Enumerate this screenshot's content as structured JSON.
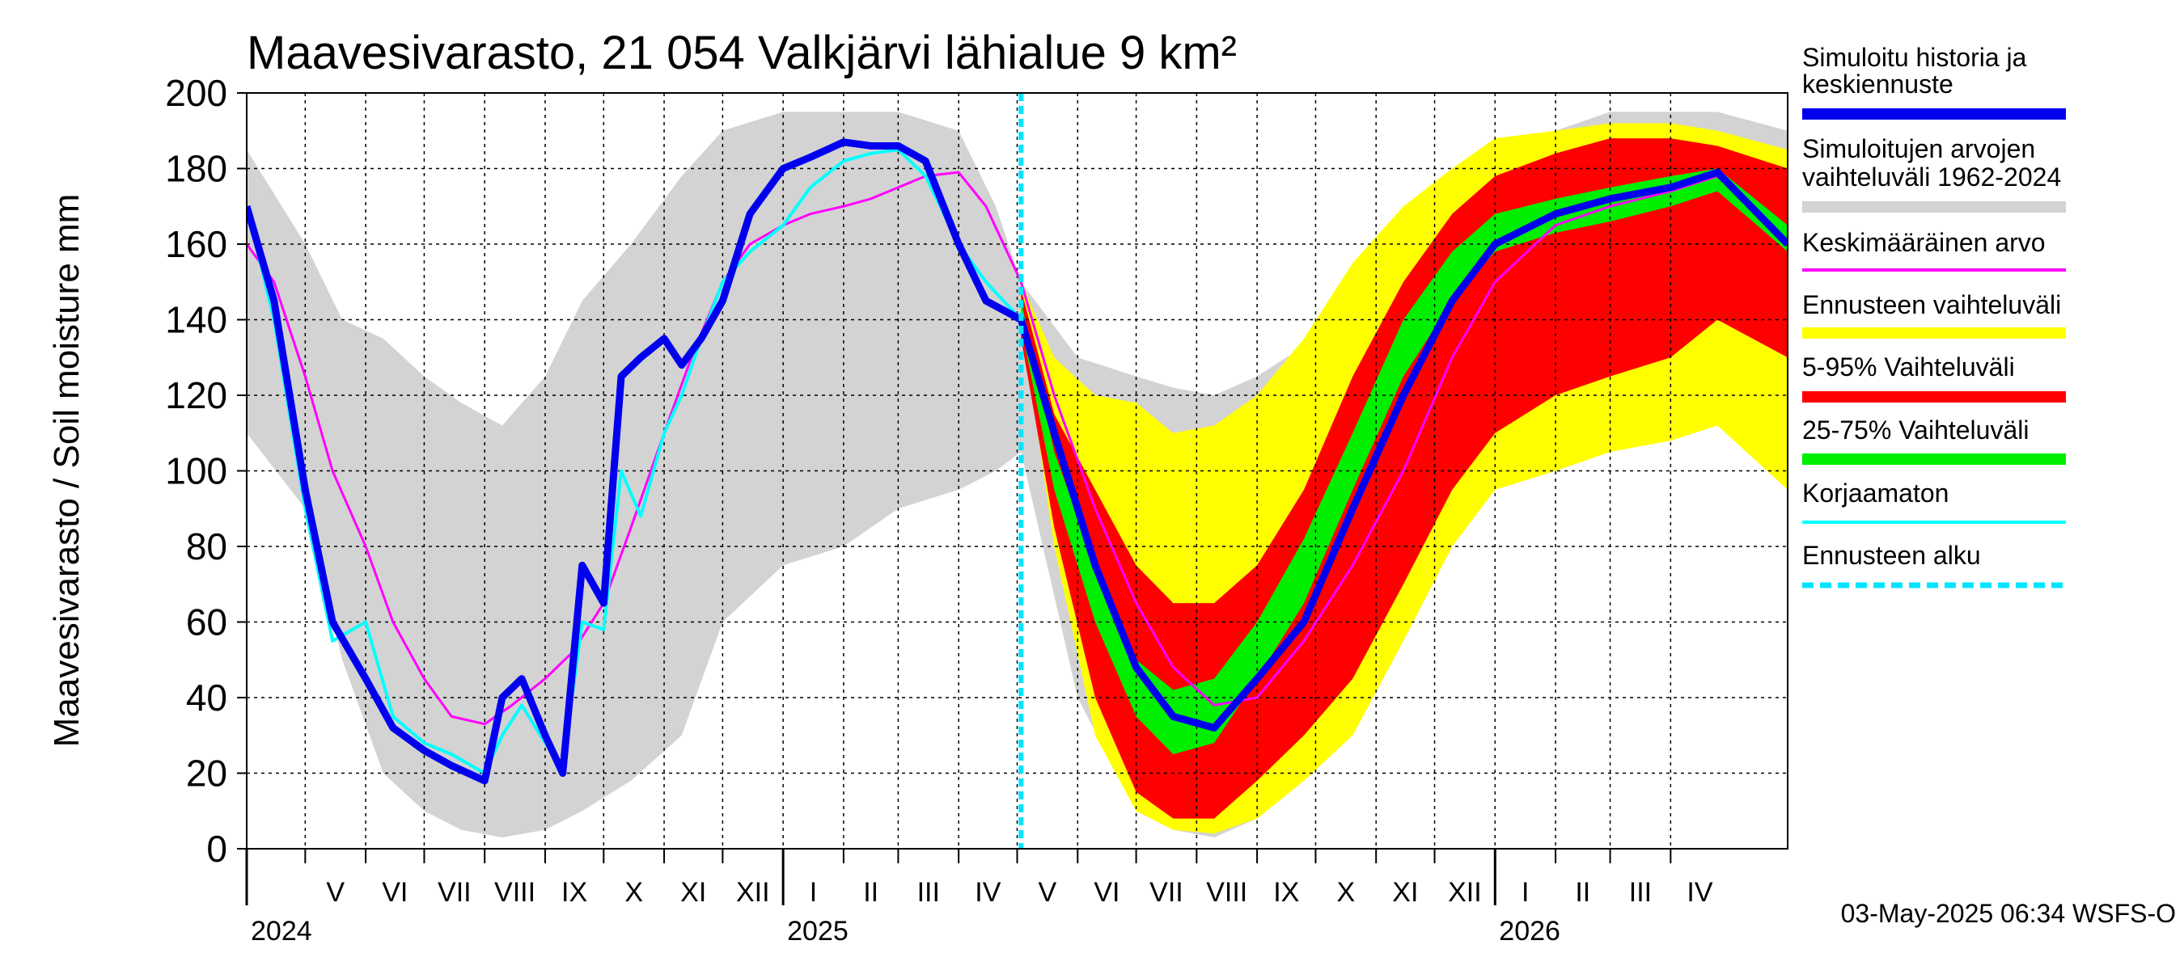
{
  "chart_data": {
    "type": "area",
    "title": "Maavesivarasto, 21 054 Valkjärvi lähialue 9 km²",
    "ylabel": "Maavesivarasto / Soil moisture   mm",
    "ylim": [
      0,
      200
    ],
    "yticks": [
      0,
      20,
      40,
      60,
      80,
      100,
      120,
      140,
      160,
      180,
      200
    ],
    "grid": true,
    "x_start": "2024-04-01",
    "x_end": "2026-05-31",
    "forecast_start": "2025-05-03",
    "months": [
      {
        "label": "V",
        "start": "2024-05-01",
        "end": "2024-06-01"
      },
      {
        "label": "VI",
        "start": "2024-06-01",
        "end": "2024-07-01"
      },
      {
        "label": "VII",
        "start": "2024-07-01",
        "end": "2024-08-01"
      },
      {
        "label": "VIII",
        "start": "2024-08-01",
        "end": "2024-09-01"
      },
      {
        "label": "IX",
        "start": "2024-09-01",
        "end": "2024-10-01"
      },
      {
        "label": "X",
        "start": "2024-10-01",
        "end": "2024-11-01"
      },
      {
        "label": "XI",
        "start": "2024-11-01",
        "end": "2024-12-01"
      },
      {
        "label": "XII",
        "start": "2024-12-01",
        "end": "2025-01-01"
      },
      {
        "label": "I",
        "start": "2025-01-01",
        "end": "2025-02-01"
      },
      {
        "label": "II",
        "start": "2025-02-01",
        "end": "2025-03-01"
      },
      {
        "label": "III",
        "start": "2025-03-01",
        "end": "2025-04-01"
      },
      {
        "label": "IV",
        "start": "2025-04-01",
        "end": "2025-05-01"
      },
      {
        "label": "V",
        "start": "2025-05-01",
        "end": "2025-06-01"
      },
      {
        "label": "VI",
        "start": "2025-06-01",
        "end": "2025-07-01"
      },
      {
        "label": "VII",
        "start": "2025-07-01",
        "end": "2025-08-01"
      },
      {
        "label": "VIII",
        "start": "2025-08-01",
        "end": "2025-09-01"
      },
      {
        "label": "IX",
        "start": "2025-09-01",
        "end": "2025-10-01"
      },
      {
        "label": "X",
        "start": "2025-10-01",
        "end": "2025-11-01"
      },
      {
        "label": "XI",
        "start": "2025-11-01",
        "end": "2025-12-01"
      },
      {
        "label": "XII",
        "start": "2025-12-01",
        "end": "2026-01-01"
      },
      {
        "label": "I",
        "start": "2026-01-01",
        "end": "2026-02-01"
      },
      {
        "label": "II",
        "start": "2026-02-01",
        "end": "2026-03-01"
      },
      {
        "label": "III",
        "start": "2026-03-01",
        "end": "2026-04-01"
      },
      {
        "label": "IV",
        "start": "2026-04-01",
        "end": "2026-05-01"
      }
    ],
    "years": [
      {
        "label": "2024",
        "date": "2024-04-01"
      },
      {
        "label": "2025",
        "date": "2025-01-01"
      },
      {
        "label": "2026",
        "date": "2026-01-01"
      }
    ],
    "legend": [
      {
        "label": "Simuloitu historia ja keskiennuste",
        "color": "#0000ee",
        "style": "thick"
      },
      {
        "label": "Simuloitujen arvojen vaihteluväli 1962-2024",
        "color": "#d3d3d3",
        "style": "thick"
      },
      {
        "label": "Keskimääräinen arvo",
        "color": "#ff00ff",
        "style": "thin"
      },
      {
        "label": "Ennusteen vaihteluväli",
        "color": "#ffff00",
        "style": "thick"
      },
      {
        "label": "5-95% Vaihteluväli",
        "color": "#ff0000",
        "style": "thick"
      },
      {
        "label": "25-75% Vaihteluväli",
        "color": "#00ee00",
        "style": "thick"
      },
      {
        "label": "Korjaamaton",
        "color": "#00ffff",
        "style": "thin"
      },
      {
        "label": "Ennusteen alku",
        "color": "#00e5ff",
        "style": "dashed"
      }
    ],
    "series": {
      "hist_range": {
        "x": [
          "2024-04-01",
          "2024-05-01",
          "2024-05-20",
          "2024-06-10",
          "2024-07-01",
          "2024-07-20",
          "2024-08-10",
          "2024-09-01",
          "2024-09-20",
          "2024-10-15",
          "2024-11-10",
          "2024-12-01",
          "2025-01-01",
          "2025-02-01",
          "2025-03-01",
          "2025-04-01",
          "2025-04-20",
          "2025-05-03"
        ],
        "lo": [
          110,
          90,
          50,
          20,
          10,
          5,
          3,
          5,
          10,
          18,
          30,
          60,
          75,
          80,
          90,
          95,
          100,
          105
        ],
        "hi": [
          185,
          160,
          140,
          135,
          125,
          118,
          112,
          125,
          145,
          160,
          178,
          190,
          195,
          195,
          195,
          190,
          170,
          150
        ]
      },
      "hist_range_future": {
        "x": [
          "2025-05-03",
          "2025-06-01",
          "2025-07-01",
          "2025-07-20",
          "2025-08-10",
          "2025-09-01",
          "2025-10-01",
          "2025-11-01",
          "2025-12-01",
          "2026-01-01",
          "2026-02-01",
          "2026-03-01",
          "2026-04-01",
          "2026-04-25",
          "2026-05-31"
        ],
        "lo": [
          105,
          40,
          10,
          5,
          3,
          8,
          22,
          50,
          80,
          95,
          105,
          110,
          115,
          120,
          110
        ],
        "hi": [
          150,
          130,
          125,
          122,
          120,
          125,
          135,
          145,
          160,
          180,
          190,
          195,
          195,
          195,
          190
        ]
      },
      "forecast_yellow": {
        "x": [
          "2025-05-03",
          "2025-05-20",
          "2025-06-10",
          "2025-07-01",
          "2025-07-20",
          "2025-08-10",
          "2025-09-01",
          "2025-09-25",
          "2025-10-20",
          "2025-11-15",
          "2025-12-10",
          "2026-01-01",
          "2026-02-01",
          "2026-03-01",
          "2026-04-01",
          "2026-04-25",
          "2026-05-31"
        ],
        "lo": [
          140,
          80,
          30,
          10,
          5,
          4,
          8,
          18,
          30,
          55,
          80,
          95,
          100,
          105,
          108,
          112,
          95
        ],
        "hi": [
          150,
          130,
          120,
          118,
          110,
          112,
          120,
          135,
          155,
          170,
          180,
          188,
          190,
          192,
          192,
          190,
          185
        ]
      },
      "forecast_red": {
        "x": [
          "2025-05-03",
          "2025-05-20",
          "2025-06-10",
          "2025-07-01",
          "2025-07-20",
          "2025-08-10",
          "2025-09-01",
          "2025-09-25",
          "2025-10-20",
          "2025-11-15",
          "2025-12-10",
          "2026-01-01",
          "2026-02-01",
          "2026-03-01",
          "2026-04-01",
          "2026-04-25",
          "2026-05-31"
        ],
        "lo": [
          135,
          85,
          40,
          15,
          8,
          8,
          18,
          30,
          45,
          70,
          95,
          110,
          120,
          125,
          130,
          140,
          130
        ],
        "hi": [
          148,
          115,
          95,
          75,
          65,
          65,
          75,
          95,
          125,
          150,
          168,
          178,
          184,
          188,
          188,
          186,
          180
        ]
      },
      "forecast_green": {
        "x": [
          "2025-05-03",
          "2025-05-20",
          "2025-06-10",
          "2025-07-01",
          "2025-07-20",
          "2025-08-10",
          "2025-09-01",
          "2025-09-25",
          "2025-10-20",
          "2025-11-15",
          "2025-12-10",
          "2026-01-01",
          "2026-02-01",
          "2026-03-01",
          "2026-04-01",
          "2026-04-25",
          "2026-05-31"
        ],
        "lo": [
          138,
          95,
          60,
          35,
          25,
          28,
          45,
          65,
          95,
          125,
          145,
          158,
          163,
          166,
          170,
          174,
          158
        ],
        "hi": [
          145,
          105,
          75,
          50,
          42,
          45,
          60,
          82,
          110,
          140,
          158,
          168,
          172,
          175,
          178,
          180,
          165
        ]
      },
      "simulated": {
        "x": [
          "2024-04-01",
          "2024-04-15",
          "2024-05-01",
          "2024-05-15",
          "2024-06-01",
          "2024-06-15",
          "2024-07-01",
          "2024-07-15",
          "2024-08-01",
          "2024-08-10",
          "2024-08-20",
          "2024-09-01",
          "2024-09-10",
          "2024-09-20",
          "2024-10-01",
          "2024-10-10",
          "2024-10-20",
          "2024-11-01",
          "2024-11-10",
          "2024-11-20",
          "2024-12-01",
          "2024-12-15",
          "2025-01-01",
          "2025-01-15",
          "2025-02-01",
          "2025-02-15",
          "2025-03-01",
          "2025-03-15",
          "2025-04-01",
          "2025-04-15",
          "2025-05-03",
          "2025-05-20",
          "2025-06-10",
          "2025-07-01",
          "2025-07-20",
          "2025-08-10",
          "2025-09-01",
          "2025-09-25",
          "2025-10-20",
          "2025-11-15",
          "2025-12-10",
          "2026-01-01",
          "2026-02-01",
          "2026-03-01",
          "2026-04-01",
          "2026-04-25",
          "2026-05-31"
        ],
        "y": [
          170,
          145,
          95,
          60,
          45,
          32,
          26,
          22,
          18,
          40,
          45,
          30,
          20,
          75,
          65,
          125,
          130,
          135,
          128,
          135,
          145,
          168,
          180,
          183,
          187,
          186,
          186,
          182,
          160,
          145,
          140,
          110,
          75,
          48,
          35,
          32,
          45,
          60,
          90,
          120,
          145,
          160,
          168,
          172,
          175,
          179,
          160
        ]
      },
      "uncorrected": {
        "x": [
          "2024-04-01",
          "2024-04-15",
          "2024-05-01",
          "2024-05-15",
          "2024-06-01",
          "2024-06-15",
          "2024-07-01",
          "2024-07-15",
          "2024-08-01",
          "2024-08-10",
          "2024-08-20",
          "2024-09-01",
          "2024-09-10",
          "2024-09-20",
          "2024-10-01",
          "2024-10-10",
          "2024-10-20",
          "2024-11-01",
          "2024-11-10",
          "2024-11-20",
          "2024-12-01",
          "2024-12-15",
          "2025-01-01",
          "2025-01-15",
          "2025-02-01",
          "2025-02-15",
          "2025-03-01",
          "2025-03-15",
          "2025-04-01",
          "2025-04-15",
          "2025-05-03"
        ],
        "y": [
          170,
          140,
          90,
          55,
          60,
          35,
          28,
          25,
          20,
          30,
          38,
          28,
          22,
          60,
          58,
          100,
          88,
          110,
          120,
          135,
          150,
          158,
          165,
          175,
          182,
          184,
          185,
          178,
          160,
          150,
          140
        ]
      },
      "average": {
        "x": [
          "2024-04-01",
          "2024-04-15",
          "2024-05-01",
          "2024-05-15",
          "2024-06-01",
          "2024-06-15",
          "2024-07-01",
          "2024-07-15",
          "2024-08-01",
          "2024-08-15",
          "2024-09-01",
          "2024-09-15",
          "2024-10-01",
          "2024-10-15",
          "2024-11-01",
          "2024-11-15",
          "2024-12-01",
          "2024-12-15",
          "2025-01-01",
          "2025-01-15",
          "2025-02-01",
          "2025-02-15",
          "2025-03-01",
          "2025-03-15",
          "2025-04-01",
          "2025-04-15",
          "2025-05-03",
          "2025-05-20",
          "2025-06-10",
          "2025-07-01",
          "2025-07-20",
          "2025-08-10",
          "2025-09-01",
          "2025-09-25",
          "2025-10-20",
          "2025-11-15",
          "2025-12-10",
          "2026-01-01",
          "2026-02-01",
          "2026-03-01",
          "2026-04-01",
          "2026-04-25",
          "2026-05-31"
        ],
        "y": [
          160,
          150,
          125,
          100,
          80,
          60,
          45,
          35,
          33,
          38,
          45,
          52,
          65,
          85,
          110,
          130,
          150,
          160,
          165,
          168,
          170,
          172,
          175,
          178,
          179,
          170,
          150,
          120,
          90,
          65,
          48,
          38,
          40,
          55,
          75,
          100,
          130,
          150,
          165,
          170,
          174,
          178,
          160
        ]
      }
    }
  },
  "footer": "03-May-2025 06:34 WSFS-O"
}
